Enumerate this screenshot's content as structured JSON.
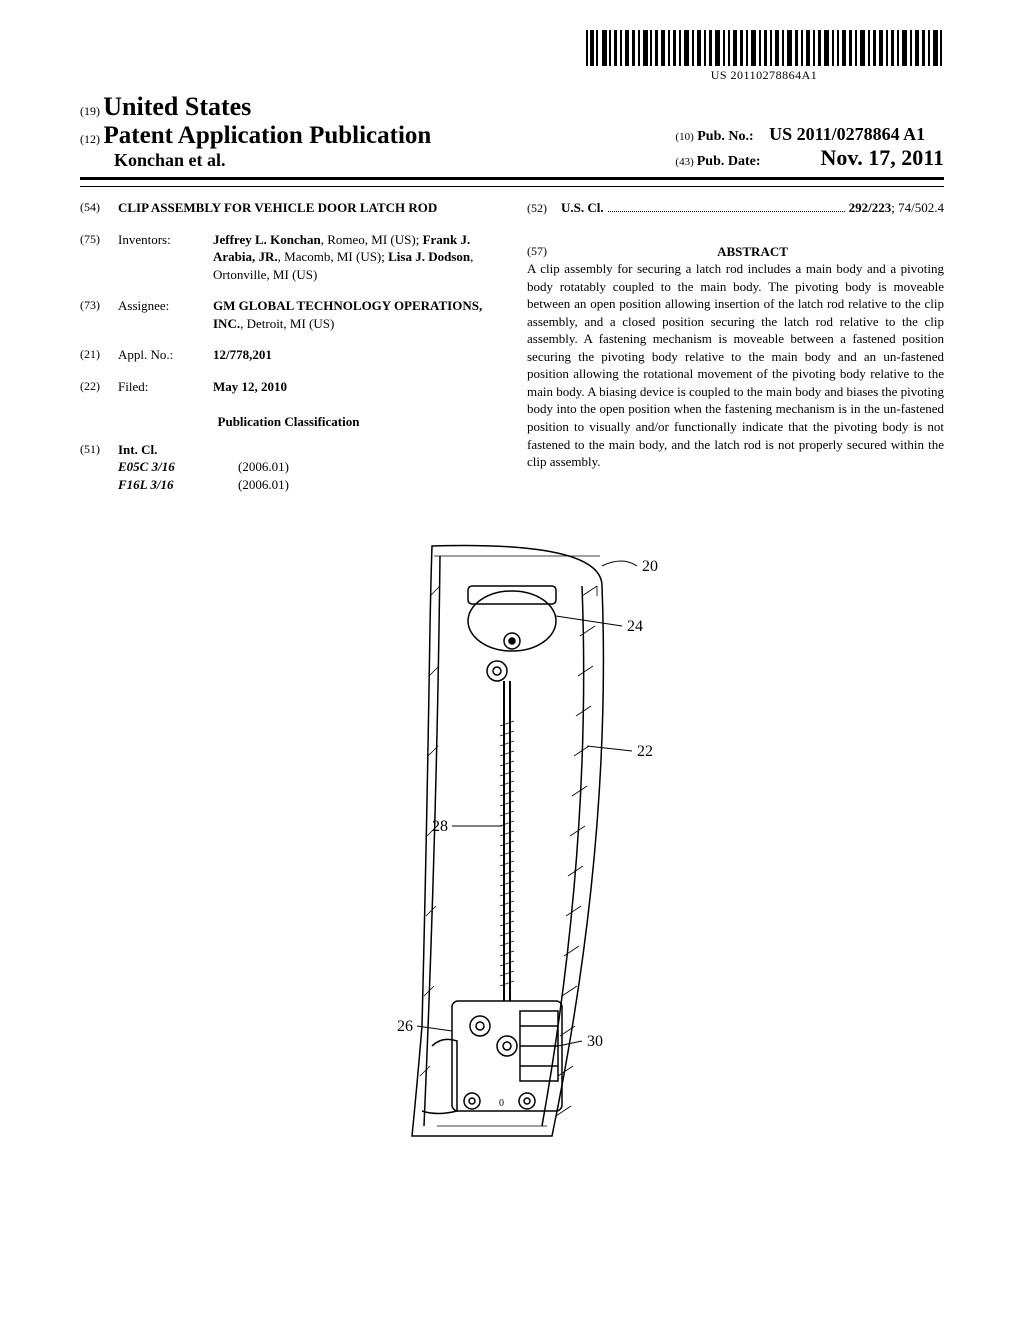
{
  "barcode_text": "US 20110278864A1",
  "header": {
    "country_prefix": "(19)",
    "country": "United States",
    "pub_prefix": "(12)",
    "pub_type": "Patent Application Publication",
    "authors": "Konchan et al.",
    "pub_no_prefix": "(10)",
    "pub_no_label": "Pub. No.:",
    "pub_no_value": "US 2011/0278864 A1",
    "pub_date_prefix": "(43)",
    "pub_date_label": "Pub. Date:",
    "pub_date_value": "Nov. 17, 2011"
  },
  "left": {
    "title_code": "(54)",
    "title": "CLIP ASSEMBLY FOR VEHICLE DOOR LATCH ROD",
    "inventors_code": "(75)",
    "inventors_label": "Inventors:",
    "inventors_html": "<b>Jeffrey L. Konchan</b>, Romeo, MI (US); <b>Frank J. Arabia, JR.</b>, Macomb, MI (US); <b>Lisa J. Dodson</b>, Ortonville, MI (US)",
    "assignee_code": "(73)",
    "assignee_label": "Assignee:",
    "assignee_html": "<b>GM GLOBAL TECHNOLOGY OPERATIONS, INC.</b>, Detroit, MI (US)",
    "applno_code": "(21)",
    "applno_label": "Appl. No.:",
    "applno_value": "12/778,201",
    "filed_code": "(22)",
    "filed_label": "Filed:",
    "filed_value": "May 12, 2010",
    "pub_class": "Publication Classification",
    "intcl_code": "(51)",
    "intcl_label": "Int. Cl.",
    "intcl": [
      {
        "code": "E05C 3/16",
        "year": "(2006.01)"
      },
      {
        "code": "F16L 3/16",
        "year": "(2006.01)"
      }
    ]
  },
  "right": {
    "uscl_code": "(52)",
    "uscl_label": "U.S. Cl.",
    "uscl_primary": "292/223",
    "uscl_secondary": "; 74/502.4",
    "abstract_code": "(57)",
    "abstract_head": "ABSTRACT",
    "abstract": "A clip assembly for securing a latch rod includes a main body and a pivoting body rotatably coupled to the main body. The pivoting body is moveable between an open position allowing insertion of the latch rod relative to the clip assembly, and a closed position securing the latch rod relative to the clip assembly. A fastening mechanism is moveable between a fastened position securing the pivoting body relative to the main body and an un-fastened position allowing the rotational movement of the pivoting body relative to the main body. A biasing device is coupled to the main body and biases the pivoting body into the open position when the fastening mechanism is in the un-fastened position to visually and/or functionally indicate that the pivoting body is not fastened to the main body, and the latch rod is not properly secured within the clip assembly."
  },
  "figure": {
    "refs": {
      "r20": "20",
      "r22": "22",
      "r24": "24",
      "r26": "26",
      "r28": "28",
      "r30": "30"
    }
  }
}
